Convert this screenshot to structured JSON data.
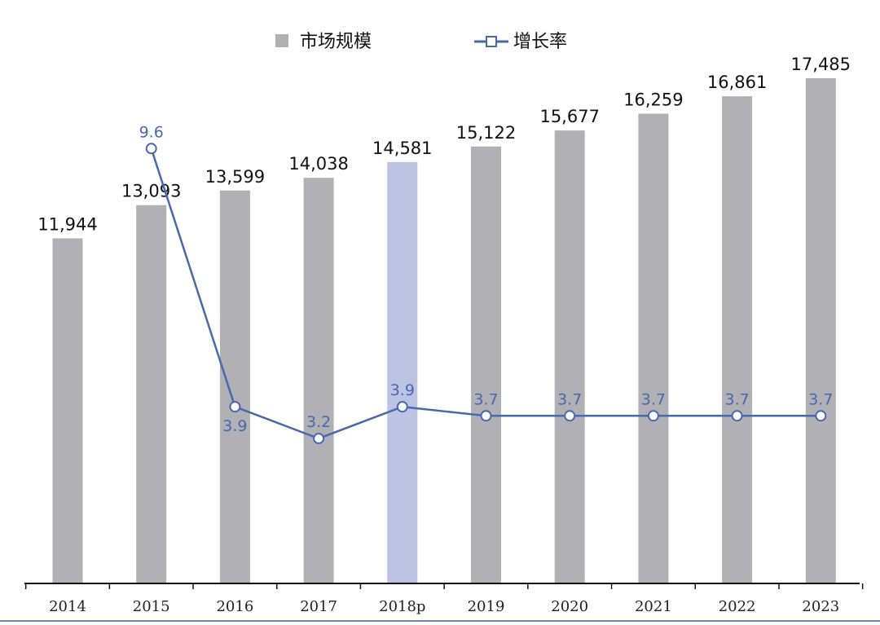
{
  "chart_data": {
    "type": "bar",
    "categories": [
      "2014",
      "2015",
      "2016",
      "2017",
      "2018p",
      "2019",
      "2020",
      "2021",
      "2022",
      "2023"
    ],
    "series": [
      {
        "name": "市场规模",
        "type": "bar",
        "values": [
          11944,
          13093,
          13599,
          14038,
          14581,
          15122,
          15677,
          16259,
          16861,
          17485
        ],
        "value_labels": [
          "11,944",
          "13,093",
          "13,599",
          "14,038",
          "14,581",
          "15,122",
          "15,677",
          "16,259",
          "16,861",
          "17,485"
        ],
        "color": "#b1b0b4",
        "highlight_category": "2018p",
        "highlight_color": "#bcc3e3"
      },
      {
        "name": "增长率",
        "type": "line",
        "values": [
          null,
          9.6,
          3.9,
          3.2,
          3.9,
          3.7,
          3.7,
          3.7,
          3.7,
          3.7
        ],
        "value_labels": [
          "",
          "9.6",
          "3.9",
          "3.2",
          "3.9",
          "3.7",
          "3.7",
          "3.7",
          "3.7",
          "3.7"
        ],
        "color": "#4a67b0"
      }
    ],
    "legend": "top-center",
    "grid": false,
    "bar_axis_range": [
      0,
      18500
    ],
    "line_axis_range": [
      0,
      11.8
    ]
  }
}
